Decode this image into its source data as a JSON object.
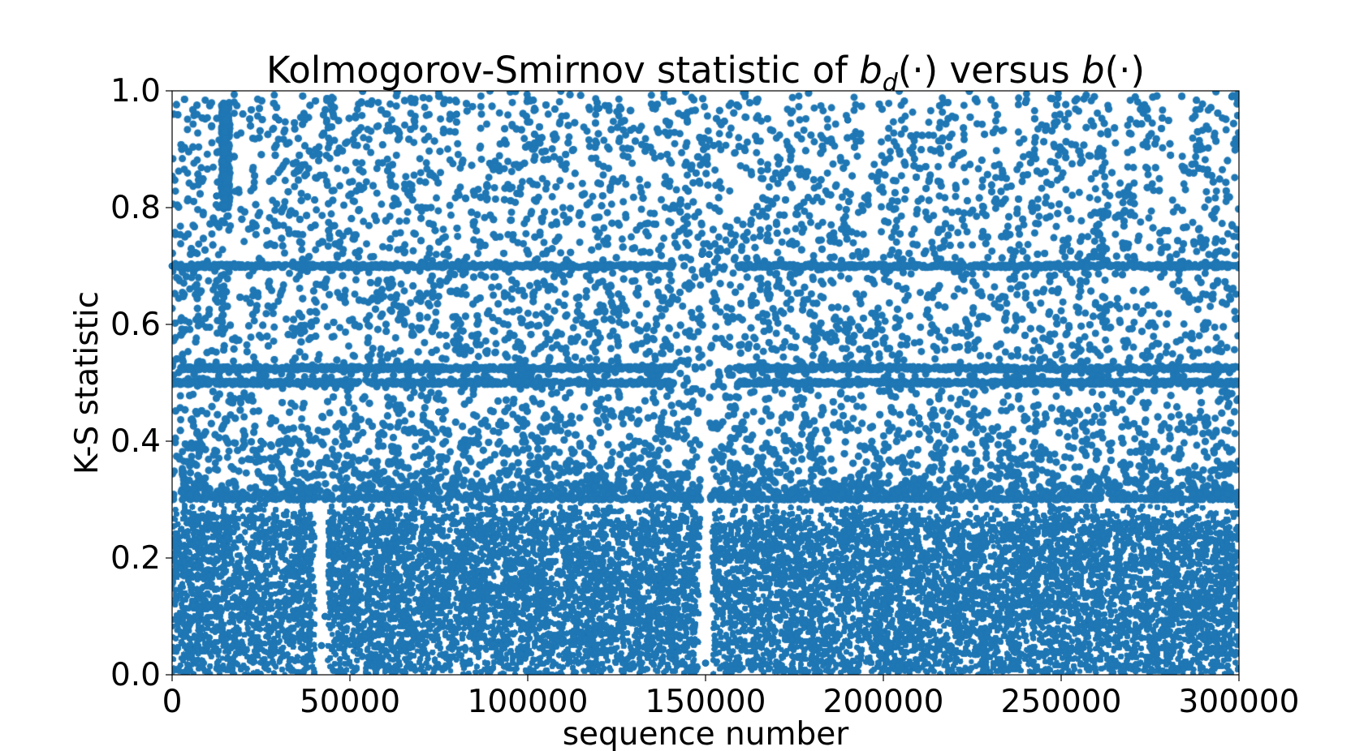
{
  "chart_data": {
    "type": "scatter",
    "title": {
      "prefix": "Kolmogorov-Smirnov statistic of ",
      "b1": "b",
      "sub": "d",
      "paren1": "(·)",
      "mid": " versus ",
      "b2": "b",
      "paren2": "(·)"
    },
    "xlabel": "sequence number",
    "ylabel": "K-S statistic",
    "xlim": [
      0,
      300000
    ],
    "ylim": [
      0.0,
      1.0
    ],
    "xticks": [
      0,
      50000,
      100000,
      150000,
      200000,
      250000,
      300000
    ],
    "xtick_labels": [
      "0",
      "50000",
      "100000",
      "150000",
      "200000",
      "250000",
      "300000"
    ],
    "yticks": [
      0.0,
      0.2,
      0.4,
      0.6,
      0.8,
      1.0
    ],
    "ytick_labels": [
      "0.0",
      "0.2",
      "0.4",
      "0.6",
      "0.8",
      "1.0"
    ],
    "grid": false,
    "marker_color": "#1f77b4",
    "n_points": 300000,
    "series": [
      {
        "dense_band_upper_y": 0.3,
        "horizontal_clusters_y": [
          0.5,
          0.525,
          0.7
        ],
        "gaps_x": [
          {
            "x": 42000,
            "y_max": 0.3
          },
          {
            "x": 150000,
            "y_max": 0.8
          }
        ],
        "high_cluster": {
          "x": 15000,
          "y_range": [
            0.8,
            0.98
          ]
        },
        "sample_points": [
          [
            15000,
            0.97
          ],
          [
            15200,
            0.95
          ],
          [
            14800,
            0.9
          ],
          [
            15500,
            0.85
          ],
          [
            12500,
            0.82
          ],
          [
            0,
            0.7
          ],
          [
            10000,
            0.7
          ],
          [
            50000,
            0.7
          ],
          [
            100000,
            0.7
          ],
          [
            170000,
            0.7
          ],
          [
            250000,
            0.7
          ],
          [
            295000,
            0.7
          ],
          [
            5000,
            0.525
          ],
          [
            60000,
            0.525
          ],
          [
            130000,
            0.525
          ],
          [
            230000,
            0.525
          ],
          [
            290000,
            0.525
          ],
          [
            20000,
            0.5
          ],
          [
            90000,
            0.5
          ],
          [
            140000,
            0.5
          ],
          [
            200000,
            0.5
          ],
          [
            270000,
            0.5
          ],
          [
            149000,
            0.72
          ],
          [
            151000,
            0.72
          ],
          [
            150000,
            0.02
          ],
          [
            42000,
            0.05
          ],
          [
            43000,
            0.1
          ],
          [
            30000,
            0.95
          ],
          [
            80000,
            0.96
          ],
          [
            120000,
            0.97
          ],
          [
            190000,
            0.95
          ],
          [
            240000,
            0.98
          ],
          [
            298000,
            0.99
          ],
          [
            25000,
            0.4
          ],
          [
            75000,
            0.45
          ],
          [
            160000,
            0.42
          ],
          [
            210000,
            0.44
          ],
          [
            260000,
            0.46
          ]
        ]
      }
    ]
  }
}
